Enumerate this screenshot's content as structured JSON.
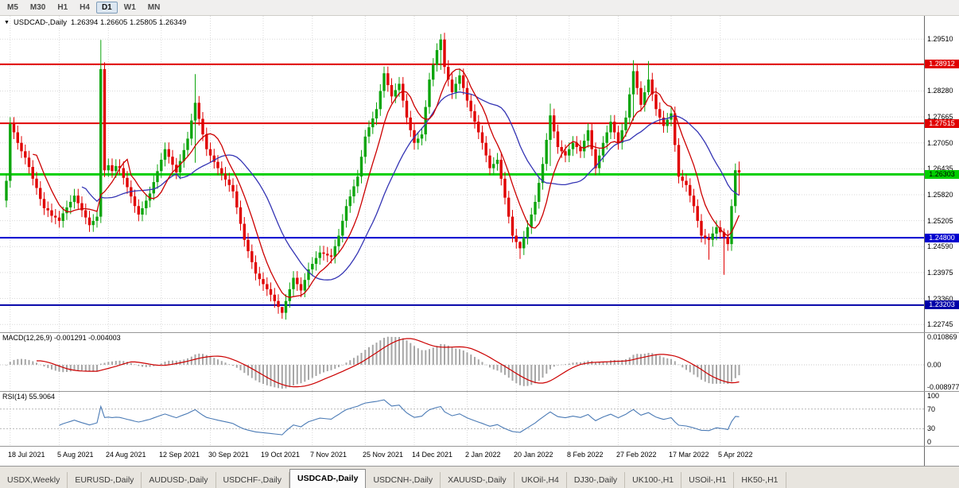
{
  "toolbar": {
    "timeframes": [
      "M5",
      "M30",
      "H1",
      "H4",
      "D1",
      "W1",
      "MN"
    ],
    "active": "D1"
  },
  "header": {
    "symbol": "USDCAD-,Daily",
    "ohlc": "1.26394 1.26605 1.25805 1.26349"
  },
  "tabs": {
    "items": [
      "USDX,Weekly",
      "EURUSD-,Daily",
      "AUDUSD-,Daily",
      "USDCHF-,Daily",
      "USDCAD-,Daily",
      "USDCNH-,Daily",
      "XAUUSD-,Daily",
      "UKOil-,H4",
      "DJ30-,Daily",
      "UK100-,H1",
      "USOil-,H1",
      "HK50-,H1"
    ],
    "active": "USDCAD-,Daily"
  },
  "chart_data": {
    "type": "candlestick",
    "symbol": "USDCAD-,Daily",
    "last_ohlc": {
      "open": 1.26394,
      "high": 1.26605,
      "low": 1.25805,
      "close": 1.26349
    },
    "colors": {
      "up": "#0da50d",
      "down": "#e00000",
      "grid": "#d9d9d9"
    },
    "first_open": 1.2568,
    "wick": 0.0016,
    "closes": [
      1.2615,
      1.275,
      1.273,
      1.2705,
      1.2685,
      1.267,
      1.2648,
      1.262,
      1.2598,
      1.2572,
      1.255,
      1.2545,
      1.2532,
      1.2528,
      1.252,
      1.2538,
      1.2552,
      1.2565,
      1.258,
      1.2562,
      1.2545,
      1.2528,
      1.251,
      1.252,
      1.253,
      1.288,
      1.264,
      1.2652,
      1.2638,
      1.265,
      1.2645,
      1.2622,
      1.26,
      1.2578,
      1.2555,
      1.2535,
      1.255,
      1.2568,
      1.2585,
      1.2612,
      1.2638,
      1.2665,
      1.269,
      1.2672,
      1.2653,
      1.2635,
      1.2662,
      1.2688,
      1.2715,
      1.2758,
      1.28,
      1.2762,
      1.2725,
      1.269,
      1.2675,
      1.266,
      1.2645,
      1.2632,
      1.2618,
      1.2605,
      1.259,
      1.2552,
      1.2513,
      1.2475,
      1.2448,
      1.2422,
      1.2395,
      1.2382,
      1.237,
      1.2358,
      1.2345,
      1.233,
      1.2316,
      1.2302,
      1.233,
      1.2358,
      1.2385,
      1.237,
      1.2355,
      1.238,
      1.2405,
      1.2418,
      1.2432,
      1.2445,
      1.2442,
      1.2438,
      1.2435,
      1.246,
      1.2485,
      1.252,
      1.2555,
      1.2578,
      1.2602,
      1.2625,
      1.2672,
      1.272,
      1.2742,
      1.2763,
      1.2785,
      1.2828,
      1.287,
      1.2842,
      1.2815,
      1.283,
      1.2845,
      1.2805,
      1.2765,
      1.2735,
      1.2705,
      1.2715,
      1.2725,
      1.279,
      1.2855,
      1.289,
      1.2925,
      1.295,
      1.2885,
      1.2855,
      1.2825,
      1.2845,
      1.2865,
      1.2835,
      1.2805,
      1.278,
      1.2755,
      1.273,
      1.2705,
      1.2675,
      1.2645,
      1.2655,
      1.2665,
      1.262,
      1.2575,
      1.253,
      1.2485,
      1.247,
      1.2455,
      1.248,
      1.2505,
      1.2535,
      1.2565,
      1.261,
      1.2655,
      1.2712,
      1.277,
      1.2732,
      1.2695,
      1.2685,
      1.2675,
      1.269,
      1.2705,
      1.2695,
      1.2685,
      1.271,
      1.2735,
      1.269,
      1.2645,
      1.2675,
      1.2705,
      1.273,
      1.2755,
      1.273,
      1.2705,
      1.2735,
      1.2765,
      1.282,
      1.2875,
      1.2835,
      1.2795,
      1.2825,
      1.2855,
      1.282,
      1.2785,
      1.2765,
      1.2745,
      1.276,
      1.2775,
      1.27,
      1.2625,
      1.2615,
      1.2605,
      1.258,
      1.2555,
      1.252,
      1.2485,
      1.248,
      1.2475,
      1.249,
      1.2505,
      1.2493,
      1.2482,
      1.2465,
      1.2555,
      1.264,
      1.2635
    ],
    "special_wicks": {
      "25": [
        1.2949,
        1.2515
      ],
      "50": [
        1.2868,
        1.2658
      ],
      "73": [
        1.2312,
        1.2288
      ],
      "115": [
        1.2963,
        1.2878
      ],
      "136": [
        1.2472,
        1.243
      ],
      "144": [
        1.2798,
        1.265
      ],
      "166": [
        1.2901,
        1.2758
      ],
      "170": [
        1.2899,
        1.2818
      ],
      "186": [
        1.249,
        1.2428
      ],
      "190": [
        1.2502,
        1.2392
      ],
      "194": [
        1.26605,
        1.25805
      ]
    },
    "ma_fast": {
      "period": 8,
      "color": "#cc0000"
    },
    "ma_slow": {
      "period": 21,
      "color": "#3434b4"
    },
    "price_axis": {
      "min": 1.2256,
      "max": 1.3006,
      "ticks": [
        {
          "label": "1.29510",
          "price": 1.2951
        },
        {
          "label": "1.28280",
          "price": 1.2828
        },
        {
          "label": "1.27665",
          "price": 1.27665
        },
        {
          "label": "1.27050",
          "price": 1.2705
        },
        {
          "label": "1.26435",
          "price": 1.26435
        },
        {
          "label": "1.25820",
          "price": 1.2582
        },
        {
          "label": "1.25205",
          "price": 1.25205
        },
        {
          "label": "1.24590",
          "price": 1.2459
        },
        {
          "label": "1.23975",
          "price": 1.23975
        },
        {
          "label": "1.23360",
          "price": 1.2336
        },
        {
          "label": "1.22745",
          "price": 1.22745
        }
      ],
      "grid_prices": [
        1.2951,
        1.28895,
        1.2828,
        1.27665,
        1.2705,
        1.26435,
        1.2582,
        1.25205,
        1.2459,
        1.23975,
        1.2336,
        1.22745
      ]
    },
    "levels": [
      {
        "price": 1.28912,
        "label": "1.28912",
        "color": "#e00000",
        "width": 2,
        "text": "#ffffff"
      },
      {
        "price": 1.27515,
        "label": "1.27515",
        "color": "#e00000",
        "width": 2,
        "text": "#ffffff"
      },
      {
        "price": 1.26303,
        "label": "1.26303",
        "color": "#00cf00",
        "width": 3,
        "text": "#000000"
      },
      {
        "price": 1.248,
        "label": "1.24800",
        "color": "#0000cf",
        "width": 2,
        "text": "#ffffff"
      },
      {
        "price": 1.23203,
        "label": "1.23203",
        "color": "#0000a8",
        "width": 2,
        "text": "#ffffff"
      }
    ],
    "time_labels": [
      {
        "label": "18 Jul 2021",
        "index": 1
      },
      {
        "label": "5 Aug 2021",
        "index": 14
      },
      {
        "label": "24 Aug 2021",
        "index": 27
      },
      {
        "label": "12 Sep 2021",
        "index": 41
      },
      {
        "label": "30 Sep 2021",
        "index": 54
      },
      {
        "label": "19 Oct 2021",
        "index": 68
      },
      {
        "label": "7 Nov 2021",
        "index": 81
      },
      {
        "label": "25 Nov 2021",
        "index": 95
      },
      {
        "label": "14 Dec 2021",
        "index": 108
      },
      {
        "label": "2 Jan 2022",
        "index": 122
      },
      {
        "label": "20 Jan 2022",
        "index": 135
      },
      {
        "label": "8 Feb 2022",
        "index": 149
      },
      {
        "label": "27 Feb 2022",
        "index": 162
      },
      {
        "label": "17 Mar 2022",
        "index": 176
      },
      {
        "label": "5 Apr 2022",
        "index": 189
      }
    ],
    "macd": {
      "label": "MACD(12,26,9)",
      "values_label": "-0.001291 -0.004003",
      "fast": 12,
      "slow": 26,
      "signal": 9,
      "range_min": -0.0095,
      "range_max": 0.0115,
      "hist_color": "#a6a6a6",
      "signal_color": "#cc0000",
      "axis": [
        {
          "label": "0.010869",
          "value": 0.010869
        },
        {
          "label": "0.00",
          "value": 0
        },
        {
          "label": "-0.008977",
          "value": -0.008977
        }
      ]
    },
    "rsi": {
      "label": "RSI(14)",
      "value_label": "55.9064",
      "period": 14,
      "line_color": "#4a7ab5",
      "levels": [
        70,
        30
      ],
      "axis": [
        {
          "label": "100",
          "value": 100
        },
        {
          "label": "70",
          "value": 70
        },
        {
          "label": "30",
          "value": 30
        },
        {
          "label": "0",
          "value": 0
        }
      ]
    }
  }
}
